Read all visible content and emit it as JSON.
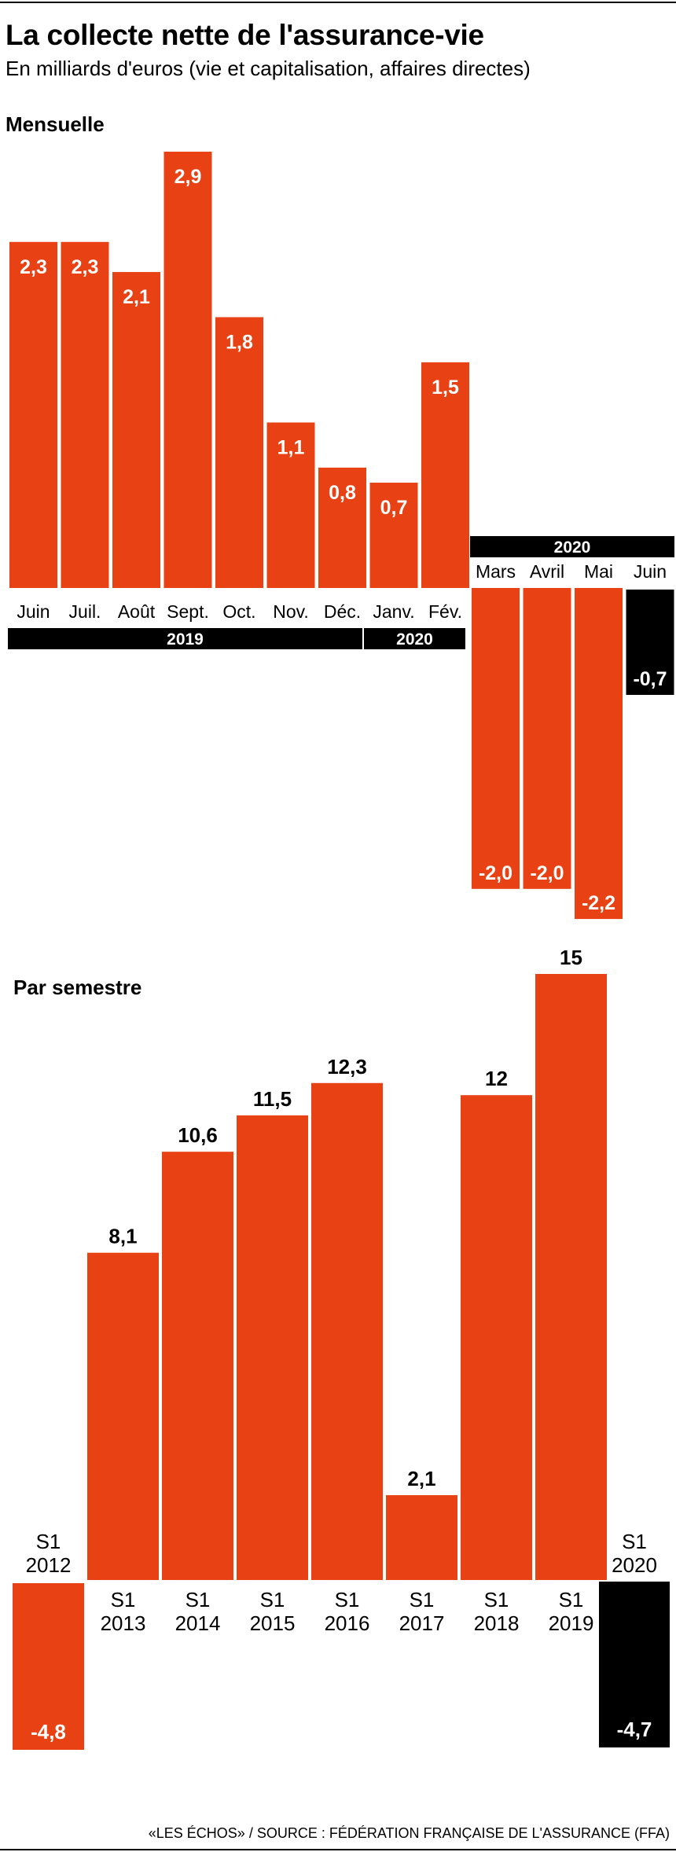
{
  "header": {
    "title": "La collecte nette de l'assurance-vie",
    "subtitle": "En milliards d'euros (vie et capitalisation, affaires directes)"
  },
  "footer": {
    "source": "«LES ÉCHOS» / SOURCE : FÉDÉRATION FRANÇAISE DE L'ASSURANCE (FFA)"
  },
  "colors": {
    "positive": "#e84114",
    "highlight": "#000000",
    "label_inside": "#ffffff",
    "label_outside": "#000000"
  },
  "chart_data": [
    {
      "type": "bar",
      "title": "Mensuelle",
      "categories": [
        "Juin",
        "Juil.",
        "Août",
        "Sept.",
        "Oct.",
        "Nov.",
        "Déc.",
        "Janv.",
        "Fév.",
        "Mars",
        "Avril",
        "Mai",
        "Juin"
      ],
      "values": [
        2.3,
        2.3,
        2.1,
        2.9,
        1.8,
        1.1,
        0.8,
        0.7,
        1.5,
        -2.0,
        -2.0,
        -2.2,
        -0.7
      ],
      "labels": [
        "2,3",
        "2,3",
        "2,1",
        "2,9",
        "1,8",
        "1,1",
        "0,8",
        "0,7",
        "1,5",
        "-2,0",
        "-2,0",
        "-2,2",
        "-0,7"
      ],
      "highlight_index": 12,
      "year_groups": [
        {
          "label": "2019",
          "from": 0,
          "to": 6
        },
        {
          "label": "2020",
          "from": 7,
          "to": 8
        },
        {
          "label": "2020",
          "from": 9,
          "to": 12
        }
      ],
      "ylim": [
        -2.2,
        2.9
      ]
    },
    {
      "type": "bar",
      "title": "Par semestre",
      "categories": [
        [
          "S1",
          "2012"
        ],
        [
          "S1",
          "2013"
        ],
        [
          "S1",
          "2014"
        ],
        [
          "S1",
          "2015"
        ],
        [
          "S1",
          "2016"
        ],
        [
          "S1",
          "2017"
        ],
        [
          "S1",
          "2018"
        ],
        [
          "S1",
          "2019"
        ],
        [
          "S1",
          "2020"
        ]
      ],
      "values": [
        -4.8,
        8.1,
        10.6,
        11.5,
        12.3,
        2.1,
        12,
        15,
        -4.7
      ],
      "labels": [
        "-4,8",
        "8,1",
        "10,6",
        "11,5",
        "12,3",
        "2,1",
        "12",
        "15",
        "-4,7"
      ],
      "highlight_index": 8,
      "ylim": [
        -4.8,
        15
      ]
    }
  ]
}
